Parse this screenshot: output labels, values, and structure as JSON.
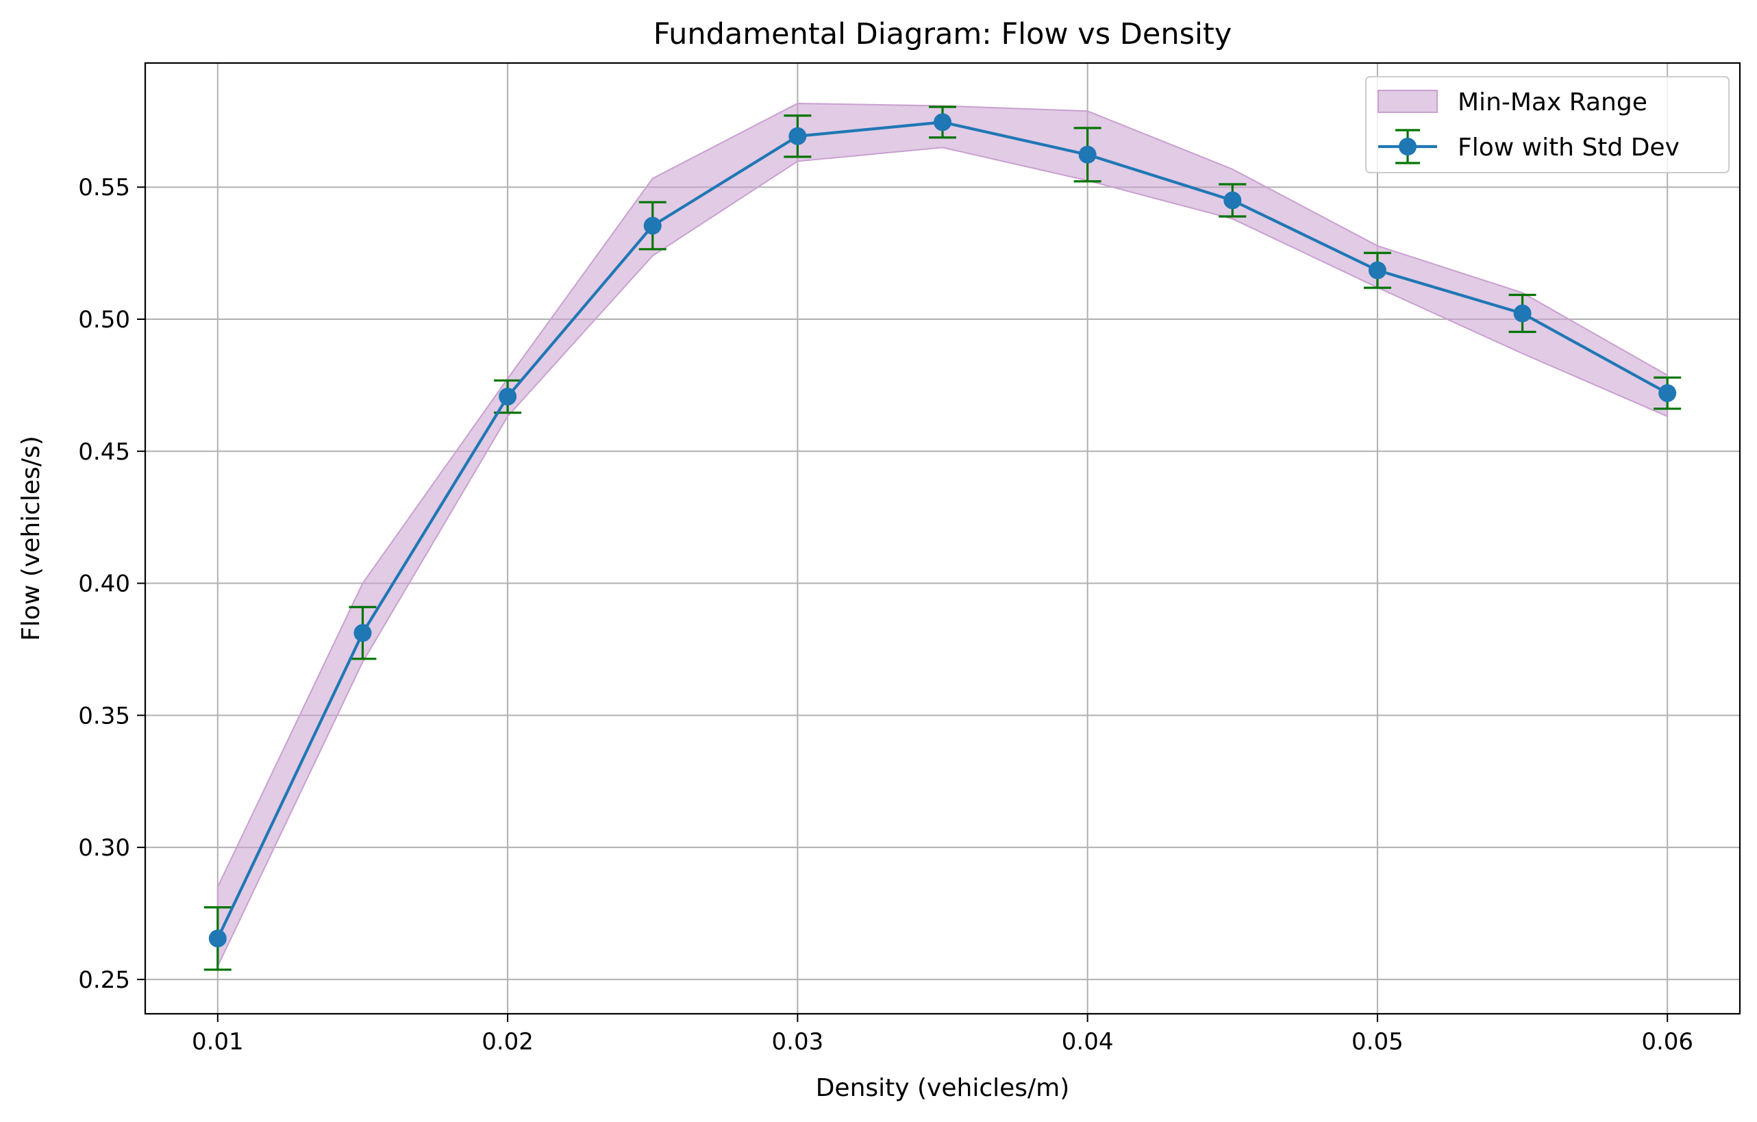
{
  "chart_data": {
    "type": "line",
    "title": "Fundamental Diagram: Flow vs Density",
    "xlabel": "Density (vehicles/m)",
    "ylabel": "Flow (vehicles/s)",
    "xlim": [
      0.0075,
      0.0625
    ],
    "ylim": [
      0.237,
      0.597
    ],
    "grid": true,
    "legend_position": "upper right",
    "x_ticks": [
      0.01,
      0.02,
      0.03,
      0.04,
      0.05,
      0.06
    ],
    "x_tick_labels": [
      "0.01",
      "0.02",
      "0.03",
      "0.04",
      "0.05",
      "0.06"
    ],
    "y_ticks": [
      0.25,
      0.3,
      0.35,
      0.4,
      0.45,
      0.5,
      0.55
    ],
    "y_tick_labels": [
      "0.25",
      "0.30",
      "0.35",
      "0.40",
      "0.45",
      "0.50",
      "0.55"
    ],
    "x": [
      0.01,
      0.015,
      0.02,
      0.025,
      0.03,
      0.035,
      0.04,
      0.045,
      0.05,
      0.055,
      0.06
    ],
    "series": [
      {
        "name": "Flow with Std Dev",
        "kind": "line-errorbar",
        "color": "#1f77b4",
        "error_color": "#007400",
        "values": [
          0.2655,
          0.3812,
          0.4707,
          0.5354,
          0.5693,
          0.5746,
          0.5623,
          0.545,
          0.5185,
          0.5022,
          0.472
        ],
        "std": [
          0.0118,
          0.0098,
          0.0061,
          0.0089,
          0.0078,
          0.0058,
          0.0101,
          0.0061,
          0.0066,
          0.007,
          0.0059
        ]
      },
      {
        "name": "Min-Max Range",
        "kind": "band",
        "color": "#c9a0d0",
        "min": [
          0.255,
          0.3702,
          0.4632,
          0.524,
          0.5598,
          0.565,
          0.5525,
          0.538,
          0.512,
          0.487,
          0.4632
        ],
        "max": [
          0.285,
          0.4,
          0.4775,
          0.5533,
          0.5817,
          0.5808,
          0.5788,
          0.5568,
          0.5278,
          0.51,
          0.4788
        ]
      }
    ]
  }
}
